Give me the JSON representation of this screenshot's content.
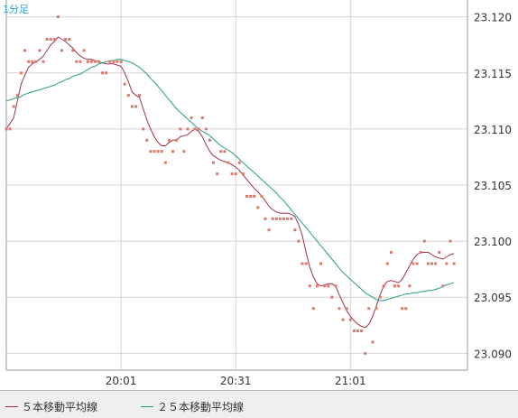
{
  "chart_data": {
    "type": "line",
    "timeframe_label": "1分足",
    "xlabel": "",
    "ylabel": "",
    "x_tick_labels": [
      "20:01",
      "20:31",
      "21:01"
    ],
    "y_tick_labels": [
      "23.120",
      "23.115",
      "23.110",
      "23.105",
      "23.100",
      "23.095",
      "23.090"
    ],
    "ylim": [
      23.0885,
      23.1215
    ],
    "grid": true,
    "legend_position": "bottom",
    "price_points": [
      23.11,
      23.11,
      23.112,
      23.113,
      23.115,
      23.117,
      23.116,
      23.116,
      23.116,
      23.117,
      23.116,
      23.118,
      23.118,
      23.118,
      23.12,
      23.117,
      23.118,
      23.118,
      23.117,
      23.116,
      23.116,
      23.117,
      23.116,
      23.116,
      23.116,
      23.116,
      23.115,
      23.115,
      23.116,
      23.116,
      23.116,
      23.116,
      23.114,
      23.113,
      23.112,
      23.112,
      23.113,
      23.11,
      23.109,
      23.108,
      23.108,
      23.108,
      23.108,
      23.107,
      23.109,
      23.108,
      23.109,
      23.11,
      23.108,
      23.11,
      23.111,
      23.11,
      23.11,
      23.111,
      23.11,
      23.109,
      23.107,
      23.106,
      23.108,
      23.108,
      23.107,
      23.106,
      23.106,
      23.107,
      23.106,
      23.104,
      23.104,
      23.104,
      23.103,
      23.104,
      23.102,
      23.101,
      23.102,
      23.102,
      23.102,
      23.102,
      23.102,
      23.102,
      23.101,
      23.1,
      23.098,
      23.098,
      23.096,
      23.094,
      23.096,
      23.098,
      23.096,
      23.096,
      23.095,
      23.096,
      23.094,
      23.093,
      23.094,
      23.093,
      23.092,
      23.092,
      23.092,
      23.09,
      23.094,
      23.091,
      23.094,
      23.095,
      23.096,
      23.098,
      23.099,
      23.096,
      23.096,
      23.094,
      23.094,
      23.096,
      23.098,
      23.098,
      23.099,
      23.1,
      23.098,
      23.098,
      23.098,
      23.099,
      23.096,
      23.098,
      23.1,
      23.098
    ],
    "series": [
      {
        "name": "５本移動平均線",
        "color": "#a03048",
        "values": [
          23.11,
          23.1105,
          23.111,
          23.1125,
          23.114,
          23.1148,
          23.1155,
          23.1158,
          23.116,
          23.1162,
          23.1165,
          23.117,
          23.1175,
          23.1178,
          23.1182,
          23.118,
          23.1178,
          23.1175,
          23.1172,
          23.1168,
          23.1165,
          23.1163,
          23.1162,
          23.1162,
          23.1161,
          23.116,
          23.1159,
          23.1158,
          23.1158,
          23.1158,
          23.1157,
          23.1156,
          23.115,
          23.1142,
          23.1133,
          23.113,
          23.1128,
          23.1118,
          23.1108,
          23.11,
          23.1093,
          23.1088,
          23.1085,
          23.1085,
          23.1088,
          23.109,
          23.109,
          23.1093,
          23.1094,
          23.1095,
          23.1098,
          23.11,
          23.1098,
          23.1093,
          23.1086,
          23.108,
          23.1076,
          23.1074,
          23.1072,
          23.1071,
          23.107,
          23.1068,
          23.1066,
          23.1063,
          23.1059,
          23.1055,
          23.1051,
          23.1047,
          23.1044,
          23.104,
          23.1036,
          23.1031,
          23.1028,
          23.1026,
          23.1025,
          23.1025,
          23.1025,
          23.1024,
          23.1022,
          23.1015,
          23.1005,
          23.099,
          23.0977,
          23.0968,
          23.0962,
          23.096,
          23.0961,
          23.0962,
          23.0962,
          23.096,
          23.0952,
          23.0945,
          23.0938,
          23.0933,
          23.0929,
          23.0926,
          23.0924,
          23.0923,
          23.0926,
          23.0933,
          23.0942,
          23.0952,
          23.096,
          23.0964,
          23.0965,
          23.0964,
          23.0963,
          23.0966,
          23.0972,
          23.0978,
          23.0984,
          23.0988,
          23.099,
          23.099,
          23.099,
          23.0988,
          23.0986,
          23.0985,
          23.0984,
          23.0986,
          23.0988,
          23.0989
        ]
      },
      {
        "name": "２５本移動平均線",
        "color": "#1f9e86",
        "values": [
          23.1125,
          23.1126,
          23.1127,
          23.1128,
          23.1129,
          23.1131,
          23.1132,
          23.1133,
          23.1134,
          23.1135,
          23.1136,
          23.1137,
          23.1138,
          23.1139,
          23.1141,
          23.1142,
          23.1144,
          23.1145,
          23.1147,
          23.1148,
          23.1149,
          23.1151,
          23.1153,
          23.1155,
          23.1156,
          23.1158,
          23.1159,
          23.116,
          23.1161,
          23.1161,
          23.1162,
          23.1162,
          23.1161,
          23.116,
          23.1159,
          23.1157,
          23.1155,
          23.1152,
          23.1149,
          23.1145,
          23.1142,
          23.1138,
          23.1134,
          23.113,
          23.1126,
          23.1122,
          23.1118,
          23.1115,
          23.1112,
          23.1109,
          23.1106,
          23.1103,
          23.11,
          23.1098,
          23.1096,
          23.1094,
          23.1091,
          23.1088,
          23.1085,
          23.1083,
          23.1081,
          23.1079,
          23.1076,
          23.1073,
          23.107,
          23.1067,
          23.1064,
          23.1061,
          23.1058,
          23.1055,
          23.1052,
          23.1049,
          23.1046,
          23.1043,
          23.1039,
          23.1036,
          23.1032,
          23.1028,
          23.1024,
          23.102,
          23.1016,
          23.1012,
          23.1008,
          23.1004,
          23.1,
          23.0996,
          23.0992,
          23.0988,
          23.0984,
          23.098,
          23.0976,
          23.0972,
          23.0969,
          23.0966,
          23.0963,
          23.096,
          23.0957,
          23.0954,
          23.0952,
          23.095,
          23.0948,
          23.0947,
          23.0947,
          23.0948,
          23.0949,
          23.095,
          23.0951,
          23.0952,
          23.0953,
          23.0953,
          23.0954,
          23.0954,
          23.0955,
          23.0955,
          23.0956,
          23.0956,
          23.0957,
          23.0958,
          23.096,
          23.0961,
          23.0962,
          23.0963
        ]
      }
    ]
  },
  "legend": {
    "items": [
      {
        "label": "５本移動平均線",
        "color": "#a03048"
      },
      {
        "label": "２５本移動平均線",
        "color": "#1f9e86"
      }
    ]
  },
  "colors": {
    "grid": "#d4d4d4",
    "axis": "#999999",
    "price_dot": "#d97a6a",
    "timeframe": "#2aa3d6"
  }
}
